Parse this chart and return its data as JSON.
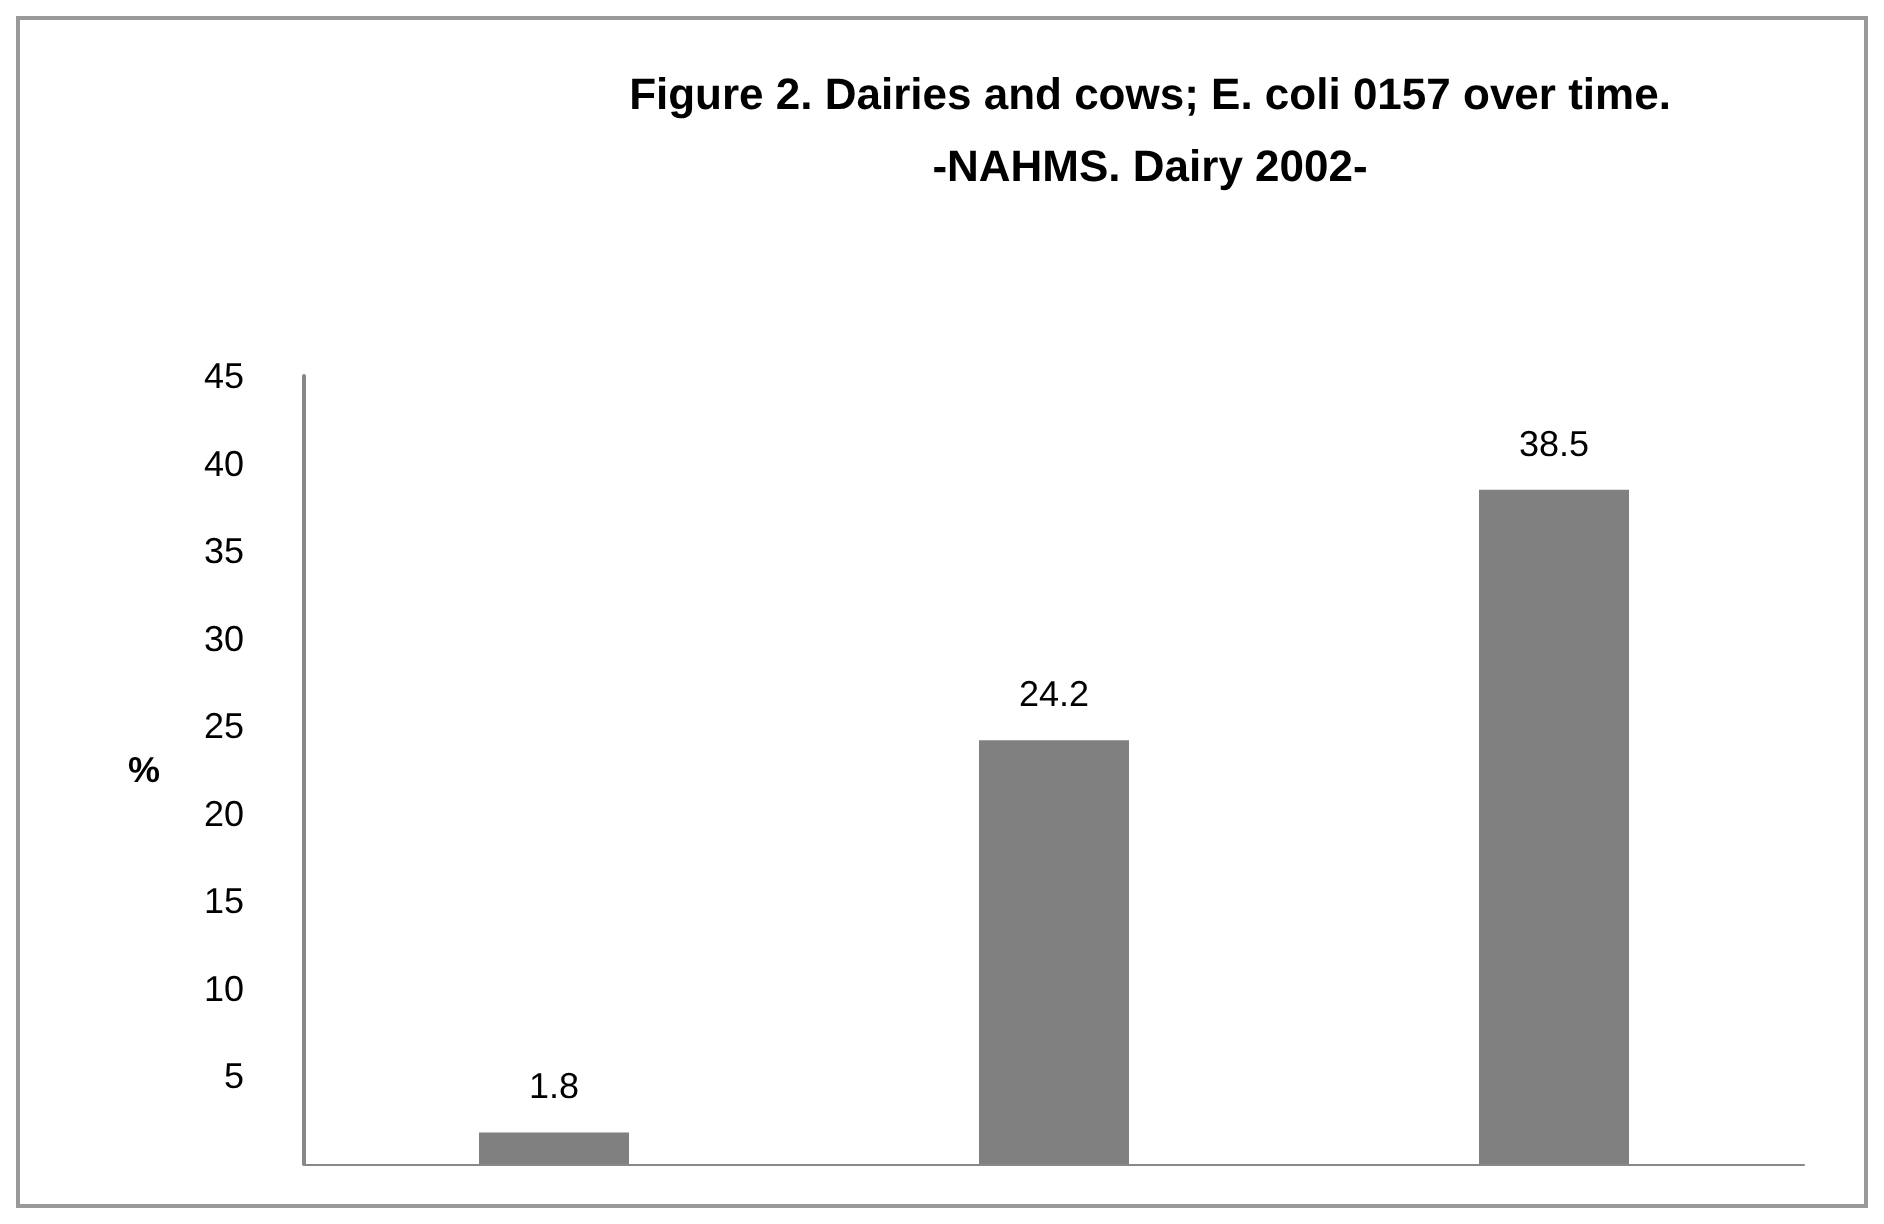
{
  "chart_data": {
    "type": "bar",
    "title": "Figure 2. Dairies and cows; E. coli 0157 over time.\n-NAHMS. Dairy 2002-",
    "ylabel": "%",
    "categories": [
      null,
      null,
      null
    ],
    "series": [
      {
        "color": "#808080",
        "values": [
          1.8,
          24.2,
          38.5
        ]
      }
    ],
    "ylim": [
      0,
      45
    ],
    "yticks": [
      5,
      10,
      15,
      20,
      25,
      30,
      35,
      40,
      45
    ],
    "data_labels": true,
    "grid": false
  }
}
